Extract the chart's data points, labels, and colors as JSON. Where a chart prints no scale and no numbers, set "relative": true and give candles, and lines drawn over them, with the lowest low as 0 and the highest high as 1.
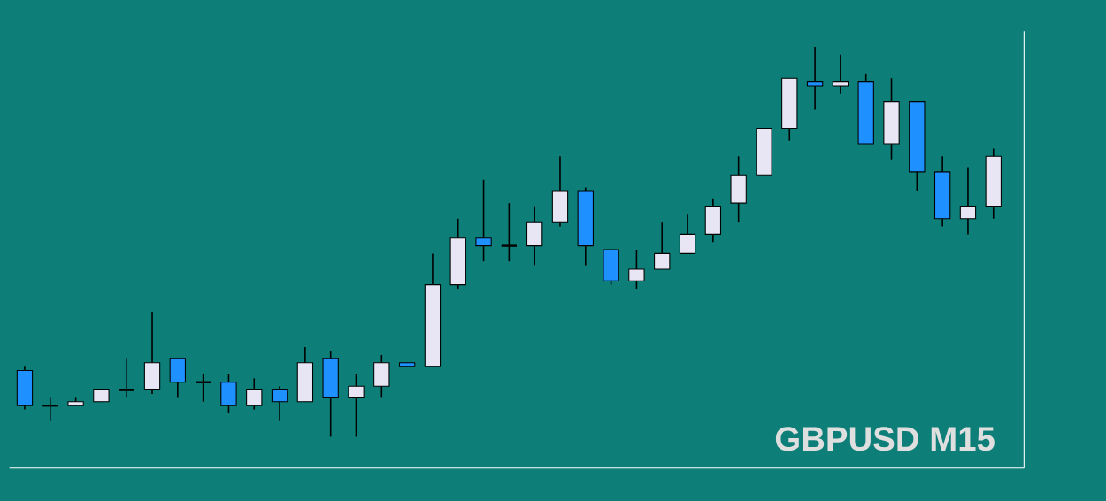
{
  "chart_data": {
    "type": "candlestick",
    "relative": true,
    "categories": [
      null,
      null,
      null,
      null,
      null,
      null,
      null,
      null,
      null,
      null,
      null,
      null,
      null,
      null,
      null,
      null,
      null,
      null,
      null,
      null,
      null,
      null,
      null,
      null,
      null,
      null,
      null,
      null,
      null,
      null,
      null,
      null,
      null,
      null,
      null,
      null,
      null,
      null,
      null
    ],
    "ohlc": [
      [
        0.17,
        0.18,
        0.07,
        0.08
      ],
      [
        0.08,
        0.1,
        0.04,
        0.08
      ],
      [
        0.08,
        0.1,
        0.08,
        0.09
      ],
      [
        0.09,
        0.12,
        0.09,
        0.12
      ],
      [
        0.12,
        0.2,
        0.1,
        0.12
      ],
      [
        0.12,
        0.32,
        0.11,
        0.19
      ],
      [
        0.2,
        0.2,
        0.1,
        0.14
      ],
      [
        0.14,
        0.16,
        0.09,
        0.14
      ],
      [
        0.14,
        0.16,
        0.06,
        0.08
      ],
      [
        0.08,
        0.15,
        0.07,
        0.12
      ],
      [
        0.12,
        0.13,
        0.04,
        0.09
      ],
      [
        0.09,
        0.23,
        0.09,
        0.19
      ],
      [
        0.2,
        0.22,
        0.0,
        0.1
      ],
      [
        0.1,
        0.16,
        0.0,
        0.13
      ],
      [
        0.13,
        0.21,
        0.1,
        0.19
      ],
      [
        0.19,
        0.19,
        0.18,
        0.18
      ],
      [
        0.18,
        0.47,
        0.18,
        0.39
      ],
      [
        0.39,
        0.56,
        0.38,
        0.51
      ],
      [
        0.51,
        0.66,
        0.45,
        0.49
      ],
      [
        0.49,
        0.6,
        0.45,
        0.49
      ],
      [
        0.49,
        0.59,
        0.44,
        0.55
      ],
      [
        0.55,
        0.72,
        0.54,
        0.63
      ],
      [
        0.63,
        0.64,
        0.44,
        0.49
      ],
      [
        0.48,
        0.48,
        0.39,
        0.4
      ],
      [
        0.4,
        0.48,
        0.38,
        0.43
      ],
      [
        0.43,
        0.55,
        0.43,
        0.47
      ],
      [
        0.47,
        0.57,
        0.47,
        0.52
      ],
      [
        0.52,
        0.61,
        0.5,
        0.59
      ],
      [
        0.6,
        0.72,
        0.55,
        0.67
      ],
      [
        0.67,
        0.79,
        0.67,
        0.79
      ],
      [
        0.79,
        0.92,
        0.76,
        0.92
      ],
      [
        0.91,
        1.0,
        0.84,
        0.9
      ],
      [
        0.9,
        0.98,
        0.88,
        0.91
      ],
      [
        0.91,
        0.93,
        0.75,
        0.75
      ],
      [
        0.75,
        0.92,
        0.71,
        0.86
      ],
      [
        0.86,
        0.86,
        0.63,
        0.68
      ],
      [
        0.68,
        0.72,
        0.54,
        0.56
      ],
      [
        0.56,
        0.69,
        0.52,
        0.59
      ],
      [
        0.59,
        0.74,
        0.56,
        0.72
      ]
    ],
    "colors": [
      "#1e90ff",
      "#000000",
      "#e8e6f5",
      "#e8e6f5",
      "#000000",
      "#e8e6f5",
      "#1e90ff",
      "#000000",
      "#1e90ff",
      "#e8e6f5",
      "#1e90ff",
      "#e8e6f5",
      "#1e90ff",
      "#e8e6f5",
      "#e8e6f5",
      "#1e90ff",
      "#e8e6f5",
      "#e8e6f5",
      "#1e90ff",
      "#000000",
      "#e8e6f5",
      "#e8e6f5",
      "#1e90ff",
      "#1e90ff",
      "#e8e6f5",
      "#e8e6f5",
      "#e8e6f5",
      "#e8e6f5",
      "#e8e6f5",
      "#e8e6f5",
      "#e8e6f5",
      "#1e90ff",
      "#e8e6f5",
      "#1e90ff",
      "#e8e6f5",
      "#1e90ff",
      "#1e90ff",
      "#e8e6f5",
      "#e8e6f5"
    ],
    "annotations": [
      "GBPUSD M15"
    ]
  }
}
